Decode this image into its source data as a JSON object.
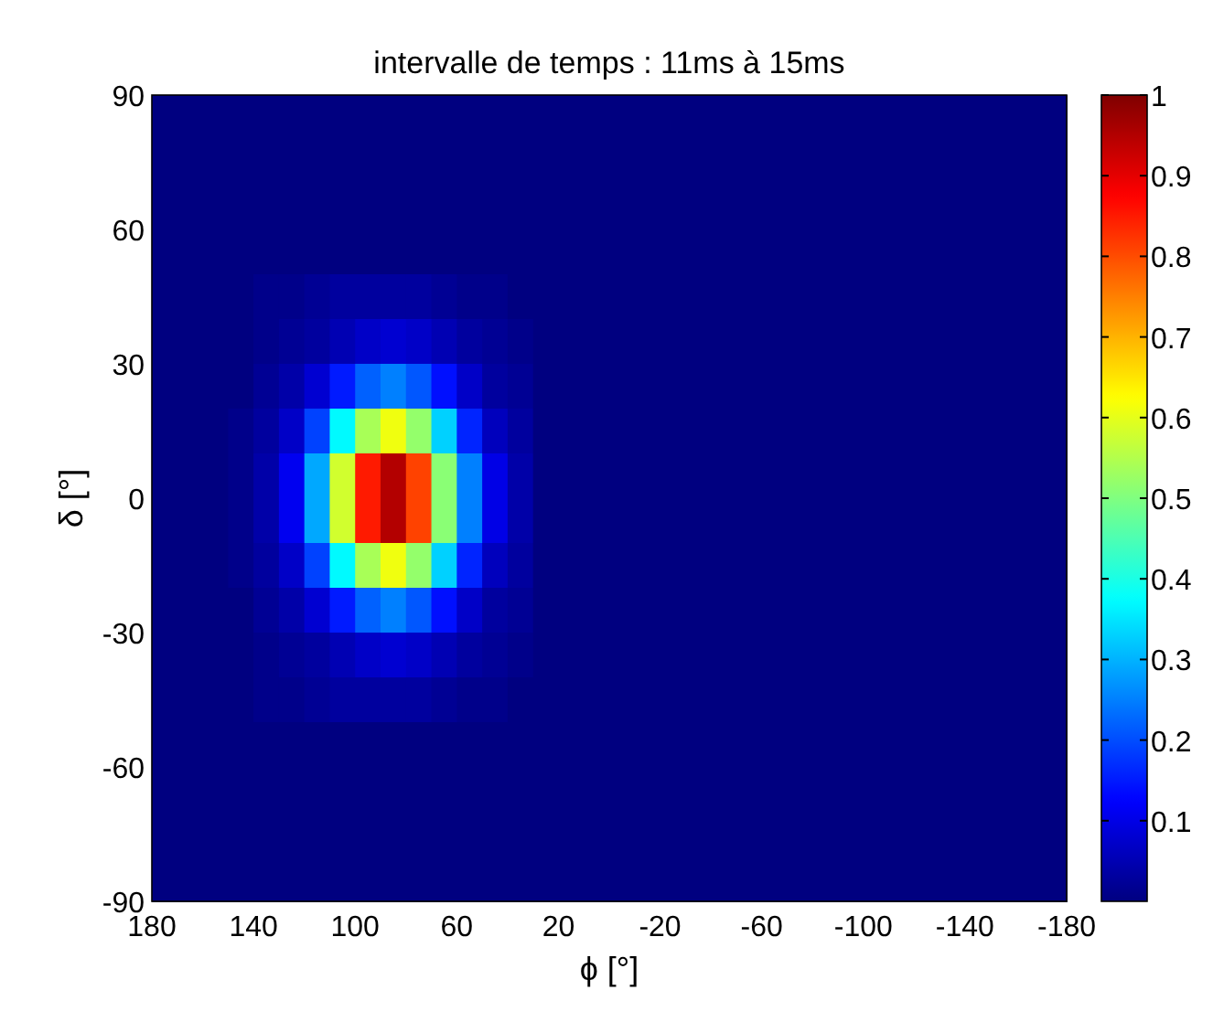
{
  "chart_data": {
    "type": "heatmap",
    "title": "intervalle de temps : 11ms à 15ms",
    "xlabel": "ϕ [°]",
    "ylabel": "δ [°]",
    "x": [
      175,
      165,
      155,
      145,
      135,
      125,
      115,
      105,
      95,
      85,
      75,
      65,
      55,
      45,
      35,
      25,
      15,
      5,
      -5,
      -15,
      -25,
      -35,
      -45,
      -55,
      -65,
      -75,
      -85,
      -95,
      -105,
      -115,
      -125,
      -135,
      -145,
      -155,
      -165,
      -175
    ],
    "y": [
      85,
      75,
      65,
      55,
      45,
      35,
      25,
      15,
      5,
      -5,
      -15,
      -25,
      -35,
      -45,
      -55,
      -65,
      -75,
      -85
    ],
    "xlim": [
      180,
      -180
    ],
    "xticks": [
      180,
      140,
      100,
      60,
      20,
      -20,
      -60,
      -100,
      -140,
      -180
    ],
    "ylim": [
      -90,
      90
    ],
    "yticks": [
      -90,
      -60,
      -30,
      0,
      30,
      60,
      90
    ],
    "clim": [
      0,
      1
    ],
    "cticks": [
      0.1,
      0.2,
      0.3,
      0.4,
      0.5,
      0.6,
      0.7,
      0.8,
      0.9,
      1
    ],
    "cells": [
      [
        0,
        0,
        0,
        0,
        0,
        0,
        0,
        0,
        0,
        0,
        0,
        0,
        0,
        0,
        0,
        0,
        0,
        0,
        0,
        0,
        0,
        0,
        0,
        0,
        0,
        0,
        0,
        0,
        0,
        0,
        0,
        0,
        0,
        0,
        0,
        0
      ],
      [
        0,
        0,
        0,
        0,
        0,
        0,
        0,
        0,
        0,
        0,
        0,
        0,
        0,
        0,
        0,
        0,
        0,
        0,
        0,
        0,
        0,
        0,
        0,
        0,
        0,
        0,
        0,
        0,
        0,
        0,
        0,
        0,
        0,
        0,
        0,
        0
      ],
      [
        0,
        0,
        0,
        0,
        0,
        0,
        0,
        0,
        0,
        0,
        0,
        0,
        0,
        0,
        0,
        0,
        0,
        0,
        0,
        0,
        0,
        0,
        0,
        0,
        0,
        0,
        0,
        0,
        0,
        0,
        0,
        0,
        0,
        0,
        0,
        0
      ],
      [
        0,
        0,
        0,
        0,
        0,
        0,
        0,
        0,
        0,
        0,
        0,
        0,
        0,
        0,
        0,
        0,
        0,
        0,
        0,
        0,
        0,
        0,
        0,
        0,
        0,
        0,
        0,
        0,
        0,
        0,
        0,
        0,
        0,
        0,
        0,
        0
      ],
      [
        0,
        0,
        0,
        0,
        0.01,
        0.01,
        0.02,
        0.03,
        0.03,
        0.03,
        0.03,
        0.02,
        0.01,
        0.01,
        0,
        0,
        0,
        0,
        0,
        0,
        0,
        0,
        0,
        0,
        0,
        0,
        0,
        0,
        0,
        0,
        0,
        0,
        0,
        0,
        0,
        0
      ],
      [
        0,
        0,
        0,
        0,
        0.01,
        0.02,
        0.03,
        0.05,
        0.07,
        0.08,
        0.07,
        0.05,
        0.03,
        0.02,
        0.01,
        0,
        0,
        0,
        0,
        0,
        0,
        0,
        0,
        0,
        0,
        0,
        0,
        0,
        0,
        0,
        0,
        0,
        0,
        0,
        0,
        0
      ],
      [
        0,
        0,
        0,
        0,
        0.02,
        0.04,
        0.08,
        0.15,
        0.22,
        0.25,
        0.21,
        0.14,
        0.07,
        0.03,
        0.02,
        0,
        0,
        0,
        0,
        0,
        0,
        0,
        0,
        0,
        0,
        0,
        0,
        0,
        0,
        0,
        0,
        0,
        0,
        0,
        0,
        0
      ],
      [
        0,
        0,
        0,
        0.01,
        0.03,
        0.07,
        0.19,
        0.37,
        0.54,
        0.61,
        0.52,
        0.33,
        0.16,
        0.06,
        0.03,
        0,
        0,
        0,
        0,
        0,
        0,
        0,
        0,
        0,
        0,
        0,
        0,
        0,
        0,
        0,
        0,
        0,
        0,
        0,
        0,
        0
      ],
      [
        0,
        0,
        0,
        0.01,
        0.04,
        0.11,
        0.29,
        0.58,
        0.85,
        0.95,
        0.81,
        0.51,
        0.25,
        0.1,
        0.04,
        0,
        0,
        0,
        0,
        0,
        0,
        0,
        0,
        0,
        0,
        0,
        0,
        0,
        0,
        0,
        0,
        0,
        0,
        0,
        0,
        0
      ],
      [
        0,
        0,
        0,
        0.01,
        0.04,
        0.11,
        0.29,
        0.58,
        0.85,
        0.95,
        0.81,
        0.51,
        0.25,
        0.1,
        0.04,
        0,
        0,
        0,
        0,
        0,
        0,
        0,
        0,
        0,
        0,
        0,
        0,
        0,
        0,
        0,
        0,
        0,
        0,
        0,
        0,
        0
      ],
      [
        0,
        0,
        0,
        0.01,
        0.03,
        0.07,
        0.19,
        0.37,
        0.54,
        0.61,
        0.52,
        0.33,
        0.16,
        0.06,
        0.03,
        0,
        0,
        0,
        0,
        0,
        0,
        0,
        0,
        0,
        0,
        0,
        0,
        0,
        0,
        0,
        0,
        0,
        0,
        0,
        0,
        0
      ],
      [
        0,
        0,
        0,
        0,
        0.02,
        0.04,
        0.08,
        0.15,
        0.22,
        0.25,
        0.21,
        0.14,
        0.07,
        0.03,
        0.02,
        0,
        0,
        0,
        0,
        0,
        0,
        0,
        0,
        0,
        0,
        0,
        0,
        0,
        0,
        0,
        0,
        0,
        0,
        0,
        0,
        0
      ],
      [
        0,
        0,
        0,
        0,
        0.01,
        0.02,
        0.03,
        0.05,
        0.07,
        0.08,
        0.07,
        0.05,
        0.03,
        0.02,
        0.01,
        0,
        0,
        0,
        0,
        0,
        0,
        0,
        0,
        0,
        0,
        0,
        0,
        0,
        0,
        0,
        0,
        0,
        0,
        0,
        0,
        0
      ],
      [
        0,
        0,
        0,
        0,
        0.01,
        0.01,
        0.02,
        0.03,
        0.03,
        0.03,
        0.03,
        0.02,
        0.01,
        0.01,
        0,
        0,
        0,
        0,
        0,
        0,
        0,
        0,
        0,
        0,
        0,
        0,
        0,
        0,
        0,
        0,
        0,
        0,
        0,
        0,
        0,
        0
      ],
      [
        0,
        0,
        0,
        0,
        0,
        0,
        0,
        0,
        0,
        0,
        0,
        0,
        0,
        0,
        0,
        0,
        0,
        0,
        0,
        0,
        0,
        0,
        0,
        0,
        0,
        0,
        0,
        0,
        0,
        0,
        0,
        0,
        0,
        0,
        0,
        0
      ],
      [
        0,
        0,
        0,
        0,
        0,
        0,
        0,
        0,
        0,
        0,
        0,
        0,
        0,
        0,
        0,
        0,
        0,
        0,
        0,
        0,
        0,
        0,
        0,
        0,
        0,
        0,
        0,
        0,
        0,
        0,
        0,
        0,
        0,
        0,
        0,
        0
      ],
      [
        0,
        0,
        0,
        0,
        0,
        0,
        0,
        0,
        0,
        0,
        0,
        0,
        0,
        0,
        0,
        0,
        0,
        0,
        0,
        0,
        0,
        0,
        0,
        0,
        0,
        0,
        0,
        0,
        0,
        0,
        0,
        0,
        0,
        0,
        0,
        0
      ],
      [
        0,
        0,
        0,
        0,
        0,
        0,
        0,
        0,
        0,
        0,
        0,
        0,
        0,
        0,
        0,
        0,
        0,
        0,
        0,
        0,
        0,
        0,
        0,
        0,
        0,
        0,
        0,
        0,
        0,
        0,
        0,
        0,
        0,
        0,
        0,
        0
      ]
    ]
  }
}
